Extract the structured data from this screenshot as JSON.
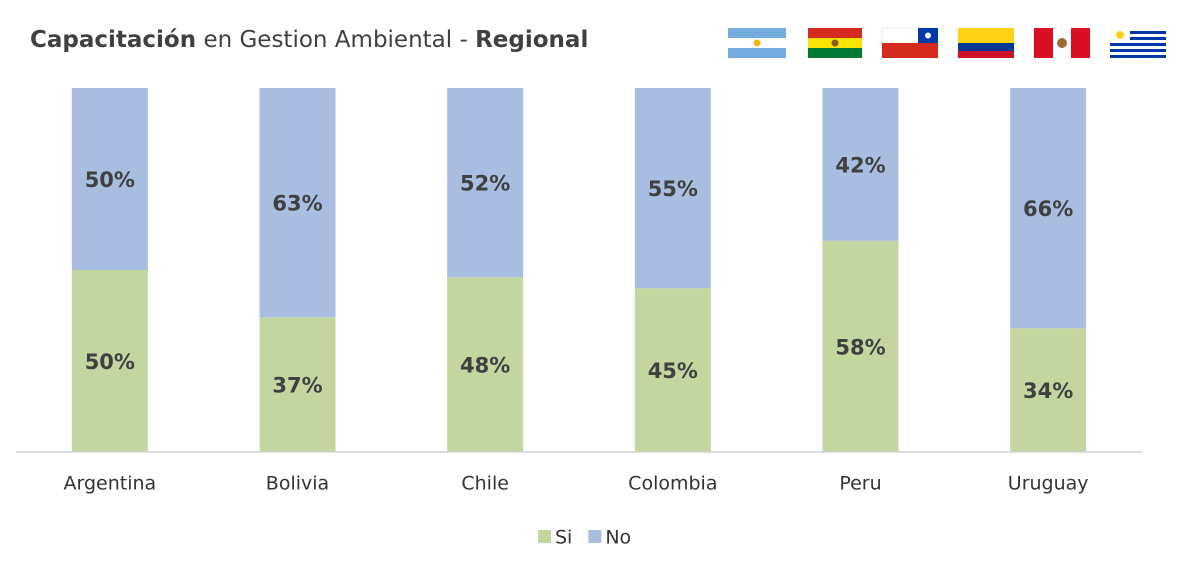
{
  "chart_data": {
    "type": "stacked_bar",
    "title": [
      {
        "text": "Capacitación",
        "bold": true
      },
      {
        "text": "en Gestion Ambiental -",
        "bold": false
      },
      {
        "text": "Regional",
        "bold": true
      }
    ],
    "categories": [
      "Argentina",
      "Bolivia",
      "Chile",
      "Colombia",
      "Peru",
      "Uruguay"
    ],
    "series": [
      {
        "name": "Si",
        "color": "#c4d6a0",
        "values": [
          50,
          37,
          48,
          45,
          58,
          34
        ],
        "value_labels": [
          "50%",
          "37%",
          "48%",
          "45%",
          "58%",
          "34%"
        ]
      },
      {
        "name": "No",
        "color": "#a9bde0",
        "values": [
          50,
          63,
          52,
          55,
          42,
          66
        ],
        "value_labels": [
          "50%",
          "63%",
          "52%",
          "55%",
          "42%",
          "66%"
        ]
      }
    ],
    "ylim": [
      0,
      100
    ],
    "legend": "bottom"
  }
}
